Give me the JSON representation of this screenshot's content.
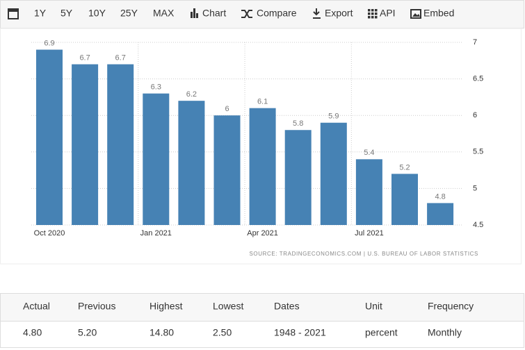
{
  "toolbar": {
    "ranges": [
      "1Y",
      "5Y",
      "10Y",
      "25Y",
      "MAX"
    ],
    "actions": [
      "Chart",
      "Compare",
      "Export",
      "API",
      "Embed"
    ]
  },
  "chart_data": {
    "type": "bar",
    "categories": [
      "Oct 2020",
      null,
      null,
      "Jan 2021",
      null,
      null,
      "Apr 2021",
      null,
      null,
      "Jul 2021",
      null,
      null
    ],
    "values": [
      6.9,
      6.7,
      6.7,
      6.3,
      6.2,
      6,
      6.1,
      5.8,
      5.9,
      5.4,
      5.2,
      4.8
    ],
    "color": "#4682b4",
    "ylim": [
      4.5,
      7
    ],
    "yticks": [
      4.5,
      5,
      5.5,
      6,
      6.5,
      7
    ],
    "grid": true,
    "y_axis_side": "right",
    "source": "SOURCE: TRADINGECONOMICS.COM | U.S. BUREAU OF LABOR STATISTICS"
  },
  "table": {
    "header": [
      "Actual",
      "Previous",
      "Highest",
      "Lowest",
      "Dates",
      "Unit",
      "Frequency"
    ],
    "rows": [
      [
        "4.80",
        "5.20",
        "14.80",
        "2.50",
        "1948 - 2021",
        "percent",
        "Monthly"
      ]
    ]
  }
}
